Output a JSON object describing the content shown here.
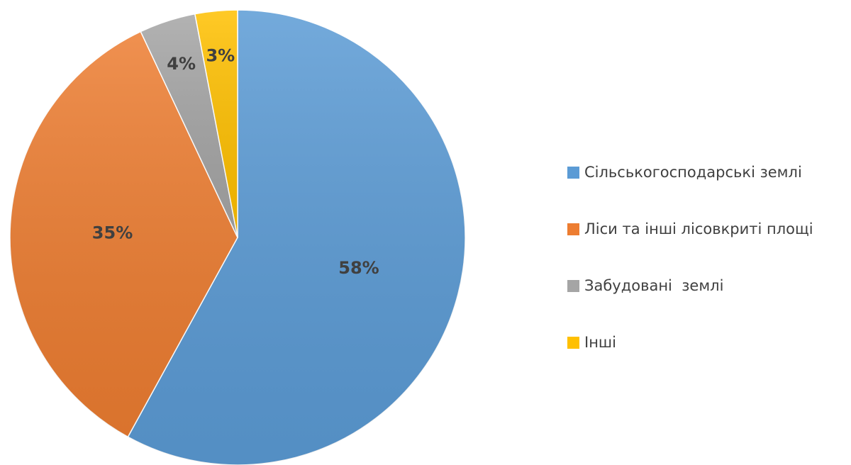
{
  "chart_data": {
    "type": "pie",
    "categories": [
      "Сільськогосподарські землі",
      "Ліси та інші лісовкриті площі",
      "Забудовані  землі",
      "Інші"
    ],
    "values": [
      58,
      35,
      4,
      3
    ],
    "value_labels": [
      "58%",
      "35%",
      "4%",
      "3%"
    ],
    "colors": [
      "#5b9bd5",
      "#ed7d31",
      "#a5a5a5",
      "#ffc000"
    ],
    "legend": "right"
  }
}
